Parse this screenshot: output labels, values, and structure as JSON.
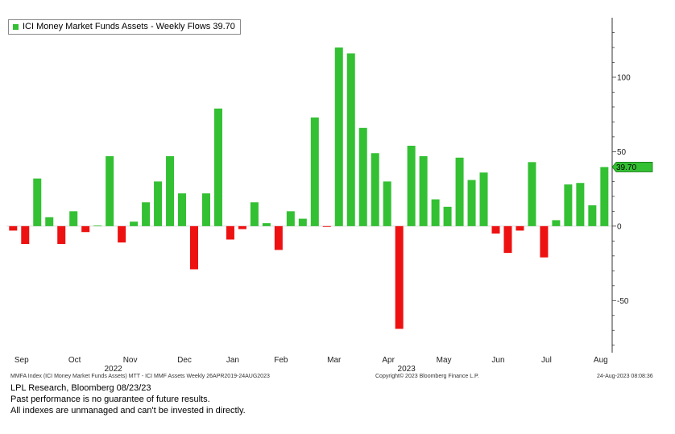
{
  "chart_data": {
    "type": "bar",
    "legend": "ICI Money Market Funds Assets - Weekly Flows 39.70",
    "last_value_label": "39.70",
    "last_value": 39.7,
    "ylim": [
      -85,
      140
    ],
    "yticks": [
      100,
      50,
      0,
      -50
    ],
    "ytick_labels": [
      "100",
      "50",
      "0",
      "-50"
    ],
    "positive_color": "#33c033",
    "negative_color": "#ee1111",
    "months": [
      {
        "label": "Sep",
        "index": 0.7
      },
      {
        "label": "Oct",
        "index": 5.1
      },
      {
        "label": "Nov",
        "index": 9.7
      },
      {
        "label": "Dec",
        "index": 14.2
      },
      {
        "label": "Jan",
        "index": 18.2
      },
      {
        "label": "Feb",
        "index": 22.2
      },
      {
        "label": "Mar",
        "index": 26.6
      },
      {
        "label": "Apr",
        "index": 31.1
      },
      {
        "label": "May",
        "index": 35.7
      },
      {
        "label": "Jun",
        "index": 40.2
      },
      {
        "label": "Jul",
        "index": 44.2
      },
      {
        "label": "Aug",
        "index": 48.7
      }
    ],
    "years": [
      {
        "label": "2022",
        "index": 8.3
      },
      {
        "label": "2023",
        "index": 32.6
      }
    ],
    "values": [
      -3,
      -12,
      32,
      6,
      -12,
      10,
      -4,
      0.4,
      47,
      -11,
      3,
      16,
      30,
      47,
      22,
      -29,
      22,
      79,
      -9,
      -2,
      16,
      2,
      -16,
      10,
      5,
      73,
      -0.5,
      120,
      116,
      66,
      49,
      30,
      -69,
      54,
      47,
      18,
      13,
      46,
      31,
      36,
      -5,
      -18,
      -3,
      43,
      -21,
      4,
      28,
      29,
      14,
      39.7
    ]
  },
  "footer": {
    "source_line": "MMFA Index (ICI Money Market Funds Assets) MTT - ICI MMF Assets  Weekly 26APR2019-24AUG2023",
    "copyright": "Copyright© 2023 Bloomberg Finance L.P.",
    "timestamp": "24-Aug-2023 08:08:36",
    "credit": "LPL Research, Bloomberg 08/23/23",
    "disclaimer_1": "Past performance is no guarantee of future results.",
    "disclaimer_2": "All indexes are unmanaged and can't be invested in directly."
  }
}
